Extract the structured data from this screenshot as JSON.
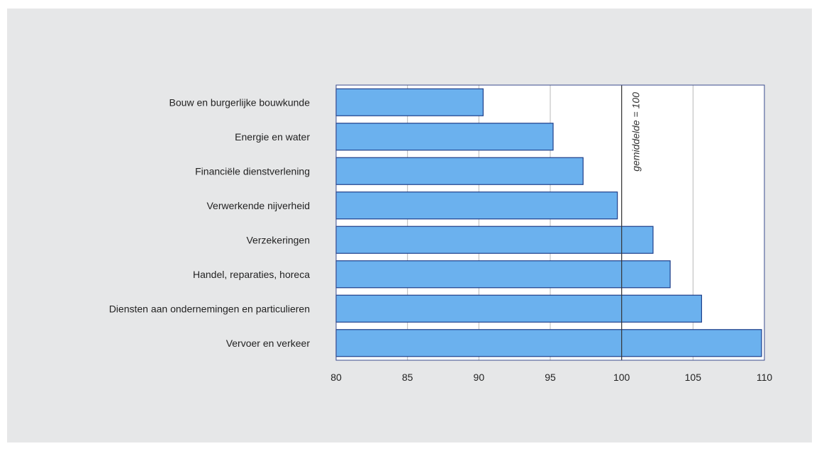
{
  "chart_data": {
    "type": "bar",
    "orientation": "horizontal",
    "categories": [
      "Bouw en burgerlijke bouwkunde",
      "Energie en water",
      "Financiële dienstverlening",
      "Verwerkende nijverheid",
      "Verzekeringen",
      "Handel, reparaties, horeca",
      "Diensten aan ondernemingen en particulieren",
      "Vervoer en verkeer"
    ],
    "values": [
      90.3,
      95.2,
      97.3,
      99.7,
      102.2,
      103.4,
      105.6,
      109.8
    ],
    "xlim": [
      80,
      110
    ],
    "xticks": [
      "80",
      "85",
      "90",
      "95",
      "100",
      "105",
      "110"
    ],
    "grid": "vertical",
    "reference_line": {
      "value": 100,
      "label": "gemiddelde = 100"
    },
    "bar_color": "#6bb1ee",
    "bar_edge_color": "#1f3f8a",
    "panel_color": "#e6e7e8"
  }
}
